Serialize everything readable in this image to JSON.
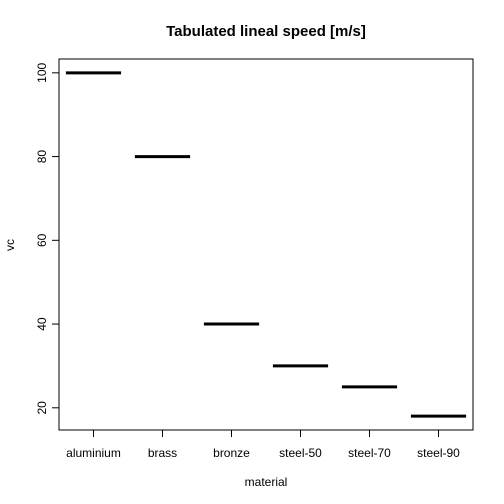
{
  "chart_data": {
    "type": "bar",
    "title": "Tabulated lineal speed [m/s]",
    "xlabel": "material",
    "ylabel": "vc",
    "categories": [
      "aluminium",
      "brass",
      "bronze",
      "steel-50",
      "steel-70",
      "steel-90"
    ],
    "values": [
      100,
      80,
      40,
      30,
      25,
      18
    ],
    "yticks": [
      20,
      40,
      60,
      80,
      100
    ],
    "ylim": [
      14.7,
      103.3
    ],
    "grid": false,
    "legend": "none",
    "line_color": "#000000"
  }
}
